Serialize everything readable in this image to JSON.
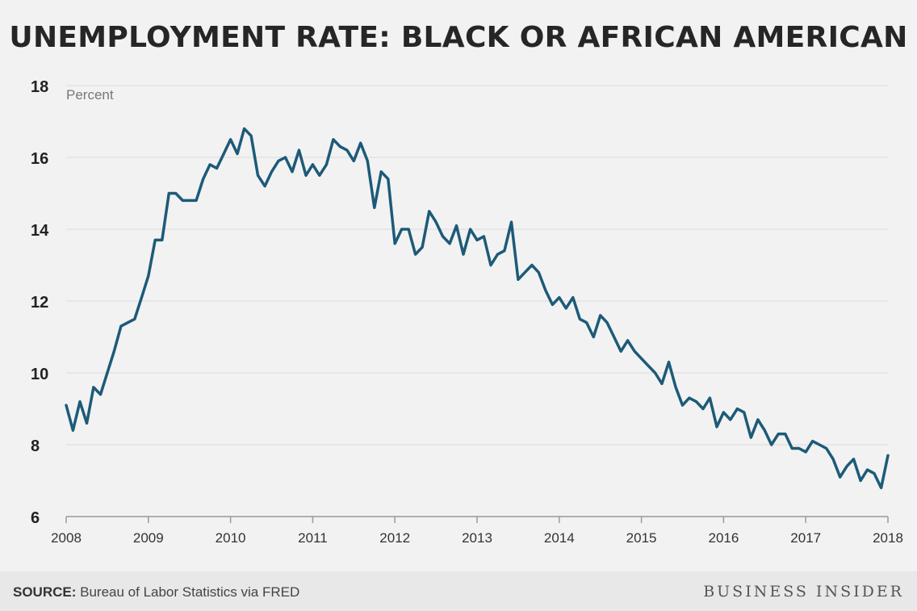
{
  "chart_data": {
    "type": "line",
    "title": "UNEMPLOYMENT RATE: BLACK OR AFRICAN AMERICAN",
    "ylabel": "Percent",
    "xlabel": "",
    "ylim": [
      6,
      18
    ],
    "xlim": [
      2008,
      2018
    ],
    "yticks": [
      "6",
      "8",
      "10",
      "12",
      "14",
      "16",
      "18"
    ],
    "xticks": [
      "2008",
      "2009",
      "2010",
      "2011",
      "2012",
      "2013",
      "2014",
      "2015",
      "2016",
      "2017",
      "2018"
    ],
    "grid": true,
    "line_color": "#1d5a78",
    "series": [
      {
        "x": [
          2008.0,
          2008.083,
          2008.167,
          2008.25,
          2008.333,
          2008.417,
          2008.5,
          2008.583,
          2008.667,
          2008.75,
          2008.833,
          2008.917,
          2009.0,
          2009.083,
          2009.167,
          2009.25,
          2009.333,
          2009.417,
          2009.5,
          2009.583,
          2009.667,
          2009.75,
          2009.833,
          2009.917,
          2010.0,
          2010.083,
          2010.167,
          2010.25,
          2010.333,
          2010.417,
          2010.5,
          2010.583,
          2010.667,
          2010.75,
          2010.833,
          2010.917,
          2011.0,
          2011.083,
          2011.167,
          2011.25,
          2011.333,
          2011.417,
          2011.5,
          2011.583,
          2011.667,
          2011.75,
          2011.833,
          2011.917,
          2012.0,
          2012.083,
          2012.167,
          2012.25,
          2012.333,
          2012.417,
          2012.5,
          2012.583,
          2012.667,
          2012.75,
          2012.833,
          2012.917,
          2013.0,
          2013.083,
          2013.167,
          2013.25,
          2013.333,
          2013.417,
          2013.5,
          2013.583,
          2013.667,
          2013.75,
          2013.833,
          2013.917,
          2014.0,
          2014.083,
          2014.167,
          2014.25,
          2014.333,
          2014.417,
          2014.5,
          2014.583,
          2014.667,
          2014.75,
          2014.833,
          2014.917,
          2015.0,
          2015.083,
          2015.167,
          2015.25,
          2015.333,
          2015.417,
          2015.5,
          2015.583,
          2015.667,
          2015.75,
          2015.833,
          2015.917,
          2016.0,
          2016.083,
          2016.167,
          2016.25,
          2016.333,
          2016.417,
          2016.5,
          2016.583,
          2016.667,
          2016.75,
          2016.833,
          2016.917,
          2017.0,
          2017.083,
          2017.167,
          2017.25,
          2017.333,
          2017.417,
          2017.5,
          2017.583,
          2017.667,
          2017.75,
          2017.833,
          2017.917,
          2018.0
        ],
        "y": [
          9.1,
          8.4,
          9.2,
          8.6,
          9.6,
          9.4,
          10.0,
          10.6,
          11.3,
          11.4,
          11.5,
          12.1,
          12.7,
          13.7,
          13.7,
          15.0,
          15.0,
          14.8,
          14.8,
          14.8,
          15.4,
          15.8,
          15.7,
          16.1,
          16.5,
          16.1,
          16.8,
          16.6,
          15.5,
          15.2,
          15.6,
          15.9,
          16.0,
          15.6,
          16.2,
          15.5,
          15.8,
          15.5,
          15.8,
          16.5,
          16.3,
          16.2,
          15.9,
          16.4,
          15.9,
          14.6,
          15.6,
          15.4,
          13.6,
          14.0,
          14.0,
          13.3,
          13.5,
          14.5,
          14.2,
          13.8,
          13.6,
          14.1,
          13.3,
          14.0,
          13.7,
          13.8,
          13.0,
          13.3,
          13.4,
          14.2,
          12.6,
          12.8,
          13.0,
          12.8,
          12.3,
          11.9,
          12.1,
          11.8,
          12.1,
          11.5,
          11.4,
          11.0,
          11.6,
          11.4,
          11.0,
          10.6,
          10.9,
          10.6,
          10.4,
          10.2,
          10.0,
          9.7,
          10.3,
          9.6,
          9.1,
          9.3,
          9.2,
          9.0,
          9.3,
          8.5,
          8.9,
          8.7,
          9.0,
          8.9,
          8.2,
          8.7,
          8.4,
          8.0,
          8.3,
          8.3,
          7.9,
          7.9,
          7.8,
          8.1,
          8.0,
          7.9,
          7.6,
          7.1,
          7.4,
          7.6,
          7.0,
          7.3,
          7.2,
          6.8,
          7.7
        ]
      }
    ]
  },
  "footer": {
    "source_label": "SOURCE:",
    "source_text": " Bureau of Labor Statistics via FRED",
    "brand": "BUSINESS INSIDER"
  }
}
